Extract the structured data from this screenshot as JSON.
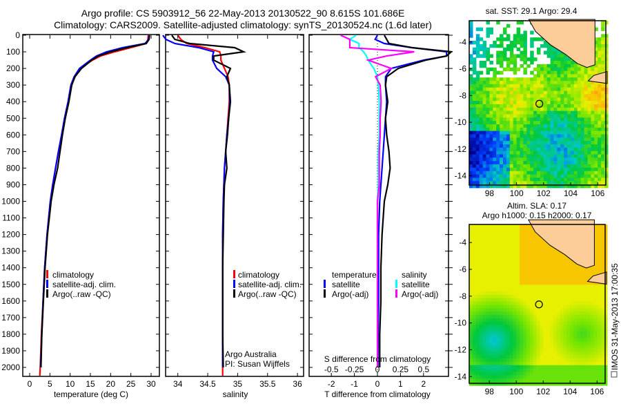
{
  "titles": {
    "line1": "Argo profile: CS 5903912_56 22-May-2013 20130522_90 8.615S 101.686E",
    "line2": "Climatology: CARS2009. Satellite-adjusted climatology: synTS_20130524.nc (1.6d later)"
  },
  "colors": {
    "climatology": "#ff0000",
    "satellite": "#0000ff",
    "argo": "#000000",
    "sal_satellite": "#00ffff",
    "sal_argo": "#ff00ff"
  },
  "chart_data": [
    {
      "type": "line",
      "name": "temperature-profile",
      "xlabel": "temperature (deg C)",
      "xlim": [
        -1.5,
        30.5
      ],
      "ylim": [
        2075,
        0
      ],
      "xticks": [
        0,
        5,
        10,
        15,
        20,
        25,
        30
      ],
      "yticks": [
        0,
        100,
        200,
        300,
        400,
        500,
        600,
        700,
        800,
        900,
        1000,
        1100,
        1200,
        1300,
        1400,
        1500,
        1600,
        1700,
        1800,
        1900,
        2000
      ],
      "depth": [
        0,
        25,
        50,
        75,
        100,
        125,
        150,
        200,
        250,
        300,
        400,
        500,
        600,
        700,
        800,
        900,
        1000,
        1200,
        1400,
        1600,
        1800,
        2000,
        2050
      ],
      "series": [
        {
          "name": "climatology",
          "color": "#ff0000",
          "values": [
            29.3,
            29.2,
            28.8,
            25,
            21,
            17.5,
            15.5,
            12.5,
            11,
            10.2,
            9.5,
            8.6,
            7.9,
            7.1,
            6.4,
            5.7,
            5.1,
            4.3,
            3.7,
            3.3,
            2.9,
            2.6,
            2.5
          ]
        },
        {
          "name": "satellite-adj. clim.",
          "color": "#0000ff",
          "values": [
            29.5,
            29.4,
            28.5,
            23,
            19,
            16.5,
            15,
            12.3,
            11,
            10.2,
            9.5,
            8.6,
            7.9,
            7.1,
            6.4,
            5.7,
            5.1,
            4.3,
            3.7,
            3.3,
            3.0,
            2.7,
            null
          ]
        },
        {
          "name": "Argo(..raw -QC)",
          "color": "#000000",
          "values": [
            29.6,
            29.5,
            28.8,
            24,
            20,
            17,
            15.3,
            12.8,
            11.2,
            10.4,
            9.7,
            8.8,
            8.1,
            7.5,
            6.9,
            6.0,
            5.3,
            4.4,
            3.8,
            3.4,
            3.0,
            2.8,
            null
          ]
        }
      ]
    },
    {
      "type": "line",
      "name": "salinity-profile",
      "xlabel": "salinity",
      "xlim": [
        33.8,
        36.1
      ],
      "ylim": [
        2075,
        0
      ],
      "xticks": [
        34,
        34.5,
        35,
        35.5,
        36
      ],
      "depth": [
        0,
        25,
        50,
        75,
        100,
        125,
        150,
        200,
        250,
        300,
        400,
        500,
        600,
        700,
        800,
        900,
        1000,
        1200,
        1400,
        1600,
        1800,
        2000,
        2050
      ],
      "series": [
        {
          "name": "climatology",
          "color": "#ff0000",
          "values": [
            34.0,
            34.05,
            34.15,
            34.45,
            34.7,
            34.72,
            34.72,
            34.78,
            34.84,
            34.86,
            34.86,
            34.84,
            34.82,
            34.8,
            34.78,
            34.77,
            34.76,
            34.75,
            34.75,
            34.75,
            34.75,
            34.75,
            34.75
          ]
        },
        {
          "name": "satellite-adj. clim.",
          "color": "#0000ff",
          "values": [
            33.75,
            33.8,
            33.95,
            34.35,
            34.6,
            34.58,
            34.58,
            34.65,
            34.8,
            34.86,
            34.87,
            34.85,
            34.82,
            34.8,
            34.78,
            34.77,
            34.76,
            34.75,
            34.75,
            34.75,
            34.75,
            34.75,
            null
          ]
        },
        {
          "name": "Argo(..raw -QC)",
          "color": "#000000",
          "values": [
            33.9,
            33.95,
            34.2,
            34.95,
            35.1,
            34.6,
            34.6,
            34.88,
            34.82,
            34.86,
            34.88,
            34.85,
            34.83,
            34.8,
            34.82,
            34.78,
            34.77,
            34.76,
            34.75,
            34.75,
            34.75,
            34.76,
            null
          ]
        }
      ],
      "annotation": [
        "Argo Australia",
        "PI: Susan Wijffels"
      ]
    },
    {
      "type": "line",
      "name": "difference-profile",
      "xlabel": "T difference from climatology",
      "x2label": "S difference from climatology",
      "xlim": [
        -3,
        3
      ],
      "x2lim": [
        -0.75,
        0.75
      ],
      "ylim": [
        2075,
        0
      ],
      "xticks": [
        -2,
        -1,
        0,
        1,
        2
      ],
      "xticklabels": [
        "-2",
        "-1",
        "0",
        "1",
        "2"
      ],
      "x2ticks": [
        -0.5,
        -0.25,
        0,
        0.25,
        0.5
      ],
      "x2ticklabels": [
        "-0.5",
        "-0.25",
        "0",
        "0.25",
        "0.5"
      ],
      "depth": [
        0,
        25,
        50,
        75,
        100,
        125,
        150,
        200,
        250,
        300,
        400,
        500,
        600,
        700,
        800,
        900,
        1000,
        1200,
        1400,
        1600,
        1800,
        2000,
        2050
      ],
      "series": [
        {
          "name": "temperature satellite",
          "axis": "T",
          "color": "#0000ff",
          "values": [
            0,
            -0.1,
            0.3,
            1.5,
            3.0,
            3.0,
            2.0,
            0.6,
            0.35,
            0.35,
            0.4,
            0.35,
            0.3,
            0.25,
            0.2,
            0.15,
            0.1,
            0.05,
            0.05,
            0.05,
            0.03,
            0.02,
            null
          ]
        },
        {
          "name": "temperature Argo(-adj)",
          "axis": "T",
          "color": "#000000",
          "values": [
            0.3,
            0.4,
            0.5,
            1.5,
            3.2,
            3.0,
            2.1,
            0.9,
            0.4,
            0.35,
            0.45,
            0.35,
            0.4,
            0.5,
            0.55,
            0.45,
            0.3,
            0.2,
            0.15,
            0.15,
            0.1,
            0.1,
            null
          ]
        },
        {
          "name": "salinity satellite",
          "axis": "S",
          "color": "#00ffff",
          "values": [
            -0.23,
            -0.3,
            -0.2,
            -0.2,
            -0.15,
            -0.12,
            -0.1,
            -0.04,
            0.0,
            0.01,
            0.02,
            0.02,
            0.02,
            0.01,
            0.01,
            0.01,
            0.0,
            0.0,
            0.0,
            0.0,
            0.0,
            0.0,
            null
          ]
        },
        {
          "name": "salinity Argo(-adj)",
          "axis": "S",
          "color": "#ff00ff",
          "values": [
            -0.4,
            -0.3,
            -0.3,
            -0.3,
            0.4,
            0.1,
            -0.1,
            0.15,
            -0.02,
            0.03,
            0.04,
            0.03,
            0.03,
            0.02,
            0.02,
            0.02,
            0.0,
            0.0,
            0.0,
            0.0,
            0.0,
            0.0,
            null
          ]
        }
      ],
      "legend": {
        "temp_header": "temperature",
        "sal_header": "salinity",
        "satellite": "satellite",
        "argo": "Argo(-adj)"
      }
    },
    {
      "type": "heatmap",
      "name": "sst-map",
      "title": "sat. SST: 29.1  Argo: 29.4",
      "xlim": [
        96.5,
        106.6
      ],
      "ylim": [
        -14.7,
        -2.4
      ],
      "xticks": [
        98,
        100,
        102,
        104,
        106
      ],
      "yticks": [
        -4,
        -6,
        -8,
        -10,
        -12,
        -14
      ],
      "argo_position": {
        "lon": 101.686,
        "lat": -8.615
      }
    },
    {
      "type": "heatmap",
      "name": "sla-map",
      "title1": "Altim. SLA: 0.17",
      "title2": "Argo h1000: 0.15 h2000: 0.17",
      "xlim": [
        96.5,
        106.6
      ],
      "ylim": [
        -14.5,
        -2.65
      ],
      "xticks": [
        98,
        100,
        102,
        104,
        106
      ],
      "yticks": [
        -4,
        -6,
        -8,
        -10,
        -12,
        -14
      ],
      "argo_position": {
        "lon": 101.686,
        "lat": -8.615
      }
    }
  ],
  "legend_labels": [
    "climatology",
    "satellite-adj. clim.",
    "Argo(..raw -QC)"
  ],
  "footer": {
    "stamp": "IMOS 31-May-2013 17:00:35"
  }
}
